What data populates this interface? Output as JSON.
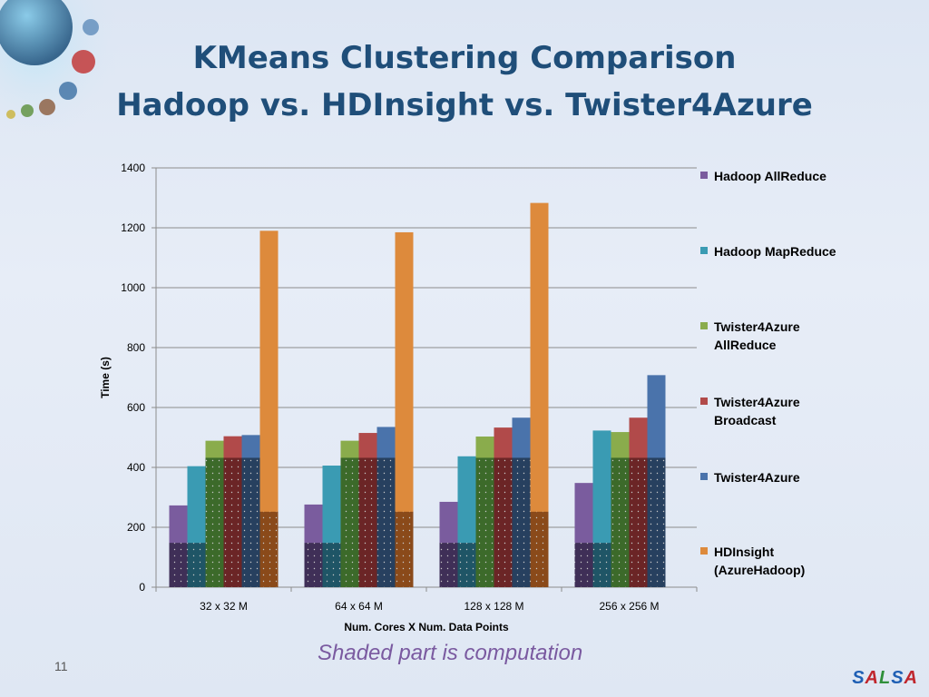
{
  "slide": {
    "title_line1": "KMeans Clustering Comparison",
    "title_line2": "Hadoop vs. HDInsight vs. Twister4Azure",
    "note": "Shaded part is computation",
    "slide_number": "11",
    "brand_letters": [
      {
        "char": "S",
        "color": "#1f5fb4"
      },
      {
        "char": "A",
        "color": "#c0262d"
      },
      {
        "char": "L",
        "color": "#2f8f3a"
      },
      {
        "char": "S",
        "color": "#1f5fb4"
      },
      {
        "char": "A",
        "color": "#c0262d"
      }
    ]
  },
  "chart_data": {
    "type": "bar",
    "xlabel": "Num. Cores X Num. Data Points",
    "ylabel": "Time (s)",
    "ylim": [
      0,
      1400
    ],
    "yticks": [
      0,
      200,
      400,
      600,
      800,
      1000,
      1200,
      1400
    ],
    "grid": true,
    "legend_position": "right",
    "categories": [
      "32 x 32 M",
      "64 x 64 M",
      "128 x 128 M",
      "256 x 256 M"
    ],
    "series": [
      {
        "name": "Hadoop AllReduce",
        "color": "#7a5c9e",
        "values": [
          273,
          276,
          285,
          348
        ],
        "computation": [
          148,
          148,
          148,
          148
        ]
      },
      {
        "name": "Hadoop MapReduce",
        "color": "#3a9bb3",
        "values": [
          404,
          406,
          437,
          523
        ],
        "computation": [
          148,
          148,
          148,
          148
        ]
      },
      {
        "name": "Twister4Azure AllReduce",
        "color": "#8aac4c",
        "values": [
          489,
          489,
          503,
          518
        ],
        "computation": [
          432,
          432,
          432,
          432
        ]
      },
      {
        "name": "Twister4Azure Broadcast",
        "color": "#b14a4a",
        "values": [
          504,
          515,
          533,
          566
        ],
        "computation": [
          432,
          432,
          432,
          432
        ]
      },
      {
        "name": "Twister4Azure",
        "color": "#4a73ab",
        "values": [
          508,
          535,
          566,
          708
        ],
        "computation": [
          432,
          432,
          432,
          432
        ]
      },
      {
        "name": "HDInsight (AzureHadoop)",
        "color": "#dd8a3c",
        "values": [
          1190,
          1185,
          1283,
          0
        ],
        "computation": [
          252,
          252,
          252,
          0
        ]
      }
    ],
    "legend_labels": [
      "Hadoop AllReduce",
      "Hadoop MapReduce",
      "Twister4Azure\nAllReduce",
      "Twister4Azure\nBroadcast",
      "Twister4Azure",
      "HDInsight\n(AzureHadoop)"
    ],
    "shaded_colors": [
      "#3f2f57",
      "#1f5566",
      "#3c6a2a",
      "#6b2526",
      "#27405f",
      "#8a4a1a"
    ]
  }
}
